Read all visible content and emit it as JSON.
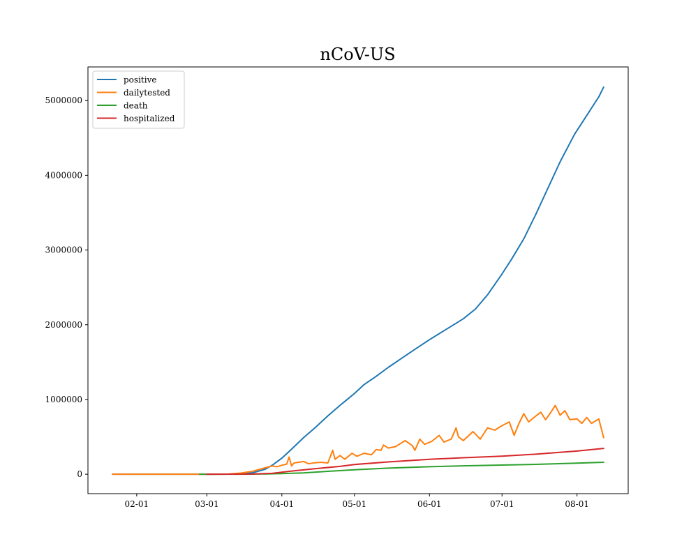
{
  "chart_data": {
    "type": "line",
    "title": "nCoV-US",
    "xlabel": "",
    "ylabel": "",
    "x_start": "2020-01-22",
    "x_end": "2020-08-12",
    "x_tick_labels": [
      "02-01",
      "03-01",
      "04-01",
      "05-01",
      "06-01",
      "07-01",
      "08-01"
    ],
    "x_tick_dates": [
      "2020-02-01",
      "2020-03-01",
      "2020-04-01",
      "2020-05-01",
      "2020-06-01",
      "2020-07-01",
      "2020-08-01"
    ],
    "y_tick_labels": [
      "0",
      "1000000",
      "2000000",
      "3000000",
      "4000000",
      "5000000"
    ],
    "y_ticks": [
      0,
      1000000,
      2000000,
      3000000,
      4000000,
      5000000
    ],
    "ylim": [
      -260000,
      5450000
    ],
    "grid": false,
    "legend_position": "top-left",
    "series": [
      {
        "name": "positive",
        "color": "#1f77b4",
        "points": [
          [
            "2020-01-22",
            0
          ],
          [
            "2020-03-01",
            100
          ],
          [
            "2020-03-10",
            1000
          ],
          [
            "2020-03-15",
            3500
          ],
          [
            "2020-03-20",
            20000
          ],
          [
            "2020-03-25",
            65000
          ],
          [
            "2020-03-28",
            120000
          ],
          [
            "2020-04-01",
            215000
          ],
          [
            "2020-04-05",
            335000
          ],
          [
            "2020-04-10",
            490000
          ],
          [
            "2020-04-15",
            630000
          ],
          [
            "2020-04-20",
            780000
          ],
          [
            "2020-04-25",
            920000
          ],
          [
            "2020-04-28",
            1000000
          ],
          [
            "2020-05-01",
            1080000
          ],
          [
            "2020-05-05",
            1200000
          ],
          [
            "2020-05-10",
            1310000
          ],
          [
            "2020-05-15",
            1430000
          ],
          [
            "2020-05-20",
            1540000
          ],
          [
            "2020-05-25",
            1650000
          ],
          [
            "2020-06-01",
            1800000
          ],
          [
            "2020-06-05",
            1880000
          ],
          [
            "2020-06-10",
            1980000
          ],
          [
            "2020-06-15",
            2080000
          ],
          [
            "2020-06-20",
            2210000
          ],
          [
            "2020-06-25",
            2400000
          ],
          [
            "2020-07-01",
            2680000
          ],
          [
            "2020-07-05",
            2880000
          ],
          [
            "2020-07-10",
            3150000
          ],
          [
            "2020-07-15",
            3480000
          ],
          [
            "2020-07-20",
            3830000
          ],
          [
            "2020-07-25",
            4180000
          ],
          [
            "2020-07-31",
            4550000
          ],
          [
            "2020-08-05",
            4800000
          ],
          [
            "2020-08-10",
            5050000
          ],
          [
            "2020-08-12",
            5180000
          ]
        ]
      },
      {
        "name": "dailytested",
        "color": "#ff7f0e",
        "points": [
          [
            "2020-01-22",
            0
          ],
          [
            "2020-03-02",
            0
          ],
          [
            "2020-03-10",
            2000
          ],
          [
            "2020-03-15",
            15000
          ],
          [
            "2020-03-20",
            40000
          ],
          [
            "2020-03-25",
            85000
          ],
          [
            "2020-03-28",
            110000
          ],
          [
            "2020-03-30",
            100000
          ],
          [
            "2020-04-01",
            120000
          ],
          [
            "2020-04-03",
            135000
          ],
          [
            "2020-04-04",
            230000
          ],
          [
            "2020-04-05",
            110000
          ],
          [
            "2020-04-06",
            150000
          ],
          [
            "2020-04-08",
            160000
          ],
          [
            "2020-04-10",
            170000
          ],
          [
            "2020-04-12",
            140000
          ],
          [
            "2020-04-14",
            150000
          ],
          [
            "2020-04-17",
            160000
          ],
          [
            "2020-04-20",
            150000
          ],
          [
            "2020-04-22",
            320000
          ],
          [
            "2020-04-23",
            200000
          ],
          [
            "2020-04-25",
            250000
          ],
          [
            "2020-04-27",
            200000
          ],
          [
            "2020-04-30",
            280000
          ],
          [
            "2020-05-02",
            240000
          ],
          [
            "2020-05-05",
            280000
          ],
          [
            "2020-05-08",
            260000
          ],
          [
            "2020-05-10",
            330000
          ],
          [
            "2020-05-12",
            320000
          ],
          [
            "2020-05-13",
            390000
          ],
          [
            "2020-05-15",
            350000
          ],
          [
            "2020-05-18",
            370000
          ],
          [
            "2020-05-22",
            450000
          ],
          [
            "2020-05-25",
            380000
          ],
          [
            "2020-05-26",
            320000
          ],
          [
            "2020-05-28",
            470000
          ],
          [
            "2020-05-30",
            400000
          ],
          [
            "2020-06-02",
            440000
          ],
          [
            "2020-06-05",
            520000
          ],
          [
            "2020-06-07",
            430000
          ],
          [
            "2020-06-10",
            470000
          ],
          [
            "2020-06-12",
            620000
          ],
          [
            "2020-06-13",
            500000
          ],
          [
            "2020-06-15",
            450000
          ],
          [
            "2020-06-19",
            570000
          ],
          [
            "2020-06-22",
            470000
          ],
          [
            "2020-06-25",
            620000
          ],
          [
            "2020-06-28",
            590000
          ],
          [
            "2020-07-01",
            650000
          ],
          [
            "2020-07-04",
            700000
          ],
          [
            "2020-07-06",
            520000
          ],
          [
            "2020-07-08",
            680000
          ],
          [
            "2020-07-10",
            810000
          ],
          [
            "2020-07-12",
            700000
          ],
          [
            "2020-07-15",
            780000
          ],
          [
            "2020-07-17",
            830000
          ],
          [
            "2020-07-19",
            730000
          ],
          [
            "2020-07-21",
            820000
          ],
          [
            "2020-07-23",
            920000
          ],
          [
            "2020-07-25",
            790000
          ],
          [
            "2020-07-27",
            850000
          ],
          [
            "2020-07-29",
            730000
          ],
          [
            "2020-08-01",
            740000
          ],
          [
            "2020-08-03",
            680000
          ],
          [
            "2020-08-05",
            760000
          ],
          [
            "2020-08-07",
            680000
          ],
          [
            "2020-08-10",
            740000
          ],
          [
            "2020-08-12",
            490000
          ]
        ]
      },
      {
        "name": "death",
        "color": "#2ca02c",
        "points": [
          [
            "2020-02-27",
            0
          ],
          [
            "2020-03-15",
            300
          ],
          [
            "2020-03-25",
            3000
          ],
          [
            "2020-04-01",
            8000
          ],
          [
            "2020-04-10",
            18000
          ],
          [
            "2020-04-20",
            38000
          ],
          [
            "2020-05-01",
            60000
          ],
          [
            "2020-05-15",
            82000
          ],
          [
            "2020-06-01",
            100000
          ],
          [
            "2020-06-15",
            112000
          ],
          [
            "2020-07-01",
            122000
          ],
          [
            "2020-07-15",
            132000
          ],
          [
            "2020-08-01",
            148000
          ],
          [
            "2020-08-12",
            160000
          ]
        ]
      },
      {
        "name": "hospitalized",
        "color": "#d62728",
        "points": [
          [
            "2020-03-01",
            0
          ],
          [
            "2020-03-20",
            2000
          ],
          [
            "2020-03-28",
            12000
          ],
          [
            "2020-04-05",
            42000
          ],
          [
            "2020-04-15",
            75000
          ],
          [
            "2020-04-25",
            105000
          ],
          [
            "2020-05-01",
            130000
          ],
          [
            "2020-05-15",
            165000
          ],
          [
            "2020-06-01",
            200000
          ],
          [
            "2020-06-15",
            220000
          ],
          [
            "2020-07-01",
            242000
          ],
          [
            "2020-07-15",
            268000
          ],
          [
            "2020-08-01",
            310000
          ],
          [
            "2020-08-12",
            345000
          ]
        ]
      }
    ]
  }
}
